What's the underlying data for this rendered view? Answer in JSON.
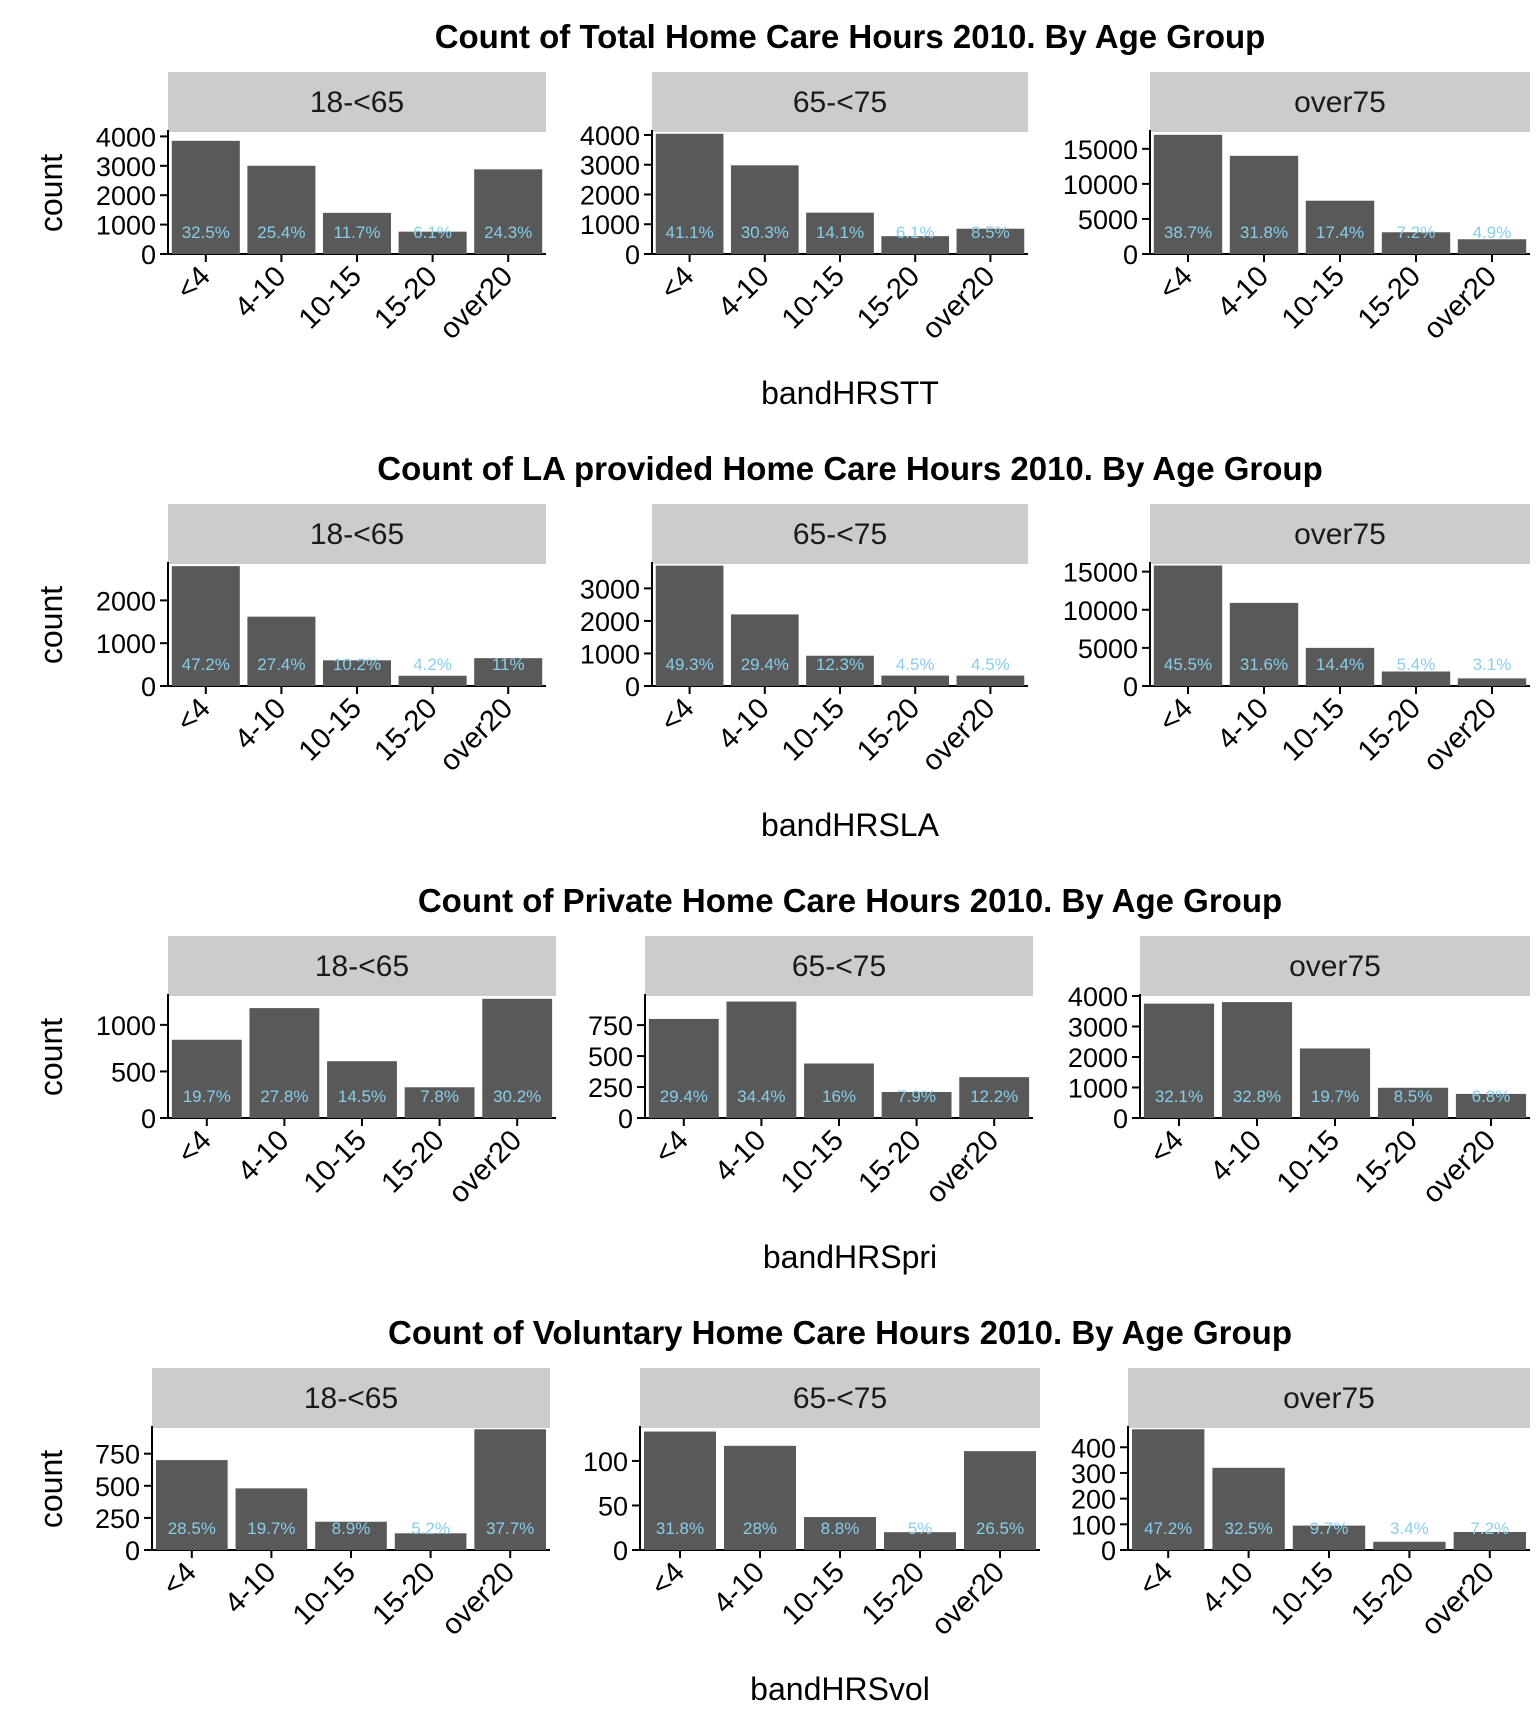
{
  "colors": {
    "bar": "#595959",
    "label": "#87CEEB",
    "strip": "#CCCCCC",
    "axis": "#000000"
  },
  "chart_data": [
    {
      "type": "bar",
      "title": "Count of Total Home Care Hours 2010. By Age Group",
      "xlabel": "bandHRSTT",
      "ylabel": "count",
      "categories": [
        "<4",
        "4-10",
        "10-15",
        "15-20",
        "over20"
      ],
      "grid": false,
      "facets": [
        {
          "name": "18-<65",
          "ylim": [
            0,
            4150
          ],
          "yticks": [
            "0",
            "1000",
            "2000",
            "3000",
            "4000"
          ],
          "values": [
            3850,
            3000,
            1400,
            760,
            2880
          ],
          "labels": [
            "32.5%",
            "25.4%",
            "11.7%",
            "6.1%",
            "24.3%"
          ]
        },
        {
          "name": "65-<75",
          "ylim": [
            0,
            4100
          ],
          "yticks": [
            "0",
            "1000",
            "2000",
            "3000",
            "4000"
          ],
          "values": [
            4040,
            2980,
            1390,
            600,
            850
          ],
          "labels": [
            "41.1%",
            "30.3%",
            "14.1%",
            "6.1%",
            "8.5%"
          ]
        },
        {
          "name": "over75",
          "ylim": [
            0,
            17400
          ],
          "yticks": [
            "0",
            "5000",
            "10000",
            "15000"
          ],
          "values": [
            17000,
            14000,
            7600,
            3100,
            2100
          ],
          "labels": [
            "38.7%",
            "31.8%",
            "17.4%",
            "7.2%",
            "4.9%"
          ]
        }
      ]
    },
    {
      "type": "bar",
      "title": "Count of LA provided Home Care Hours 2010. By Age Group",
      "xlabel": "bandHRSLA",
      "ylabel": "count",
      "categories": [
        "<4",
        "4-10",
        "10-15",
        "15-20",
        "over20"
      ],
      "grid": false,
      "facets": [
        {
          "name": "18-<65",
          "ylim": [
            0,
            2850
          ],
          "yticks": [
            "0",
            "1000",
            "2000"
          ],
          "values": [
            2800,
            1620,
            600,
            240,
            650
          ],
          "labels": [
            "47.2%",
            "27.4%",
            "10.2%",
            "4.2%",
            "11%"
          ]
        },
        {
          "name": "65-<75",
          "ylim": [
            0,
            3750
          ],
          "yticks": [
            "0",
            "1000",
            "2000",
            "3000"
          ],
          "values": [
            3700,
            2200,
            930,
            320,
            320
          ],
          "labels": [
            "49.3%",
            "29.4%",
            "12.3%",
            "4.5%",
            "4.5%"
          ]
        },
        {
          "name": "over75",
          "ylim": [
            0,
            16000
          ],
          "yticks": [
            "0",
            "5000",
            "10000",
            "15000"
          ],
          "values": [
            15800,
            10900,
            5000,
            1900,
            1000
          ],
          "labels": [
            "45.5%",
            "31.6%",
            "14.4%",
            "5.4%",
            "3.1%"
          ]
        }
      ]
    },
    {
      "type": "bar",
      "title": "Count of Private Home Care Hours 2010. By Age Group",
      "xlabel": "bandHRSpri",
      "ylabel": "count",
      "categories": [
        "<4",
        "4-10",
        "10-15",
        "15-20",
        "over20"
      ],
      "grid": false,
      "facets": [
        {
          "name": "18-<65",
          "ylim": [
            0,
            1310
          ],
          "yticks": [
            "0",
            "500",
            "1000"
          ],
          "values": [
            840,
            1180,
            610,
            330,
            1280
          ],
          "labels": [
            "19.7%",
            "27.8%",
            "14.5%",
            "7.8%",
            "30.2%"
          ]
        },
        {
          "name": "65-<75",
          "ylim": [
            0,
            985
          ],
          "yticks": [
            "0",
            "250",
            "500",
            "750"
          ],
          "values": [
            800,
            940,
            440,
            210,
            330
          ],
          "labels": [
            "29.4%",
            "34.4%",
            "16%",
            "7.9%",
            "12.2%"
          ]
        },
        {
          "name": "over75",
          "ylim": [
            0,
            4000
          ],
          "yticks": [
            "0",
            "1000",
            "2000",
            "3000",
            "4000"
          ],
          "values": [
            3750,
            3800,
            2280,
            990,
            790
          ],
          "labels": [
            "32.1%",
            "32.8%",
            "19.7%",
            "8.5%",
            "6.8%"
          ]
        }
      ]
    },
    {
      "type": "bar",
      "title": "Count of Voluntary Home Care Hours 2010. By Age Group",
      "xlabel": "bandHRSvol",
      "ylabel": "count",
      "categories": [
        "<4",
        "4-10",
        "10-15",
        "15-20",
        "over20"
      ],
      "grid": false,
      "facets": [
        {
          "name": "18-<65",
          "ylim": [
            0,
            950
          ],
          "yticks": [
            "0",
            "250",
            "500",
            "750"
          ],
          "values": [
            700,
            480,
            220,
            130,
            940
          ],
          "labels": [
            "28.5%",
            "19.7%",
            "8.9%",
            "5.2%",
            "37.7%"
          ]
        },
        {
          "name": "65-<75",
          "ylim": [
            0,
            137
          ],
          "yticks": [
            "0",
            "50",
            "100"
          ],
          "values": [
            133,
            117,
            37,
            20,
            111
          ],
          "labels": [
            "31.8%",
            "28%",
            "8.8%",
            "5%",
            "26.5%"
          ]
        },
        {
          "name": "over75",
          "ylim": [
            0,
            475
          ],
          "yticks": [
            "0",
            "100",
            "200",
            "300",
            "400"
          ],
          "values": [
            470,
            320,
            95,
            32,
            70
          ],
          "labels": [
            "47.2%",
            "32.5%",
            "9.7%",
            "3.4%",
            "7.2%"
          ]
        }
      ]
    }
  ]
}
